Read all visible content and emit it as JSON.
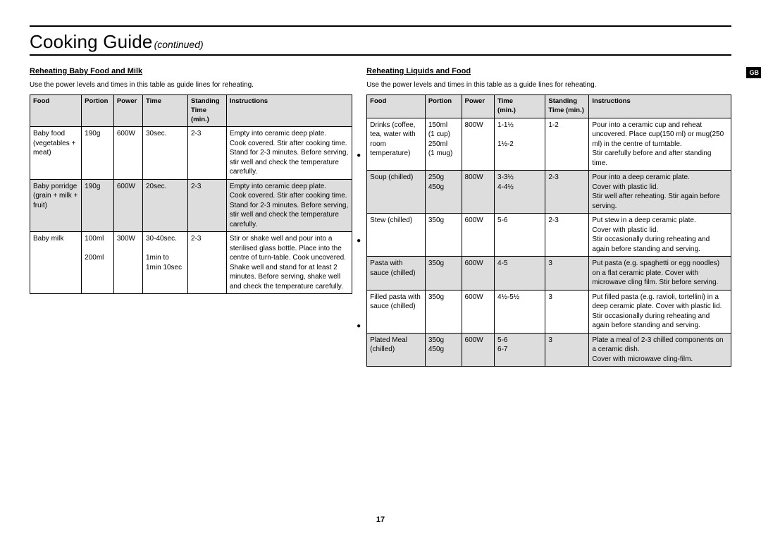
{
  "page": {
    "title_main": "Cooking Guide",
    "title_sub": "(continued)",
    "page_number": "17",
    "lang_badge": "GB"
  },
  "left": {
    "heading": "Reheating Baby Food and Milk",
    "intro": "Use the power levels and times in this table as guide lines for reheating.",
    "columns": [
      "Food",
      "Portion",
      "Power",
      "Time",
      "Standing\nTime\n(min.)",
      "Instructions"
    ],
    "rows": [
      {
        "alt": false,
        "food": "Baby food (vegetables + meat)",
        "portion": "190g",
        "power": "600W",
        "time": "30sec.",
        "stand": "2-3",
        "instr": "Empty into ceramic deep plate.\nCook covered. Stir after cooking time.\nStand for 2-3 minutes. Before serving, stir well and check the temperature carefully."
      },
      {
        "alt": true,
        "food": "Baby porridge (grain + milk + fruit)",
        "portion": "190g",
        "power": "600W",
        "time": "20sec.",
        "stand": "2-3",
        "instr": "Empty into ceramic deep plate.\nCook covered. Stir after cooking time.\nStand for 2-3 minutes. Before serving, stir well and check the temperature carefully."
      },
      {
        "alt": false,
        "food": "Baby milk",
        "portion": "100ml\n\n200ml",
        "power": "300W",
        "time": "30-40sec.\n\n1min to\n1min 10sec",
        "stand": "2-3",
        "instr": "Stir or shake well and pour into a sterilised glass bottle. Place into the centre of turn-table. Cook uncovered. Shake well and stand for at least 2 minutes. Before serving, shake well and check the temperature carefully."
      }
    ]
  },
  "right": {
    "heading": "Reheating Liquids and Food",
    "intro": "Use the power levels and times in this table as a guide lines for reheating.",
    "columns": [
      "Food",
      "Portion",
      "Power",
      "Time\n(min.)",
      "Standing\nTime (min.)",
      "Instructions"
    ],
    "rows": [
      {
        "alt": false,
        "food": "Drinks (coffee, tea, water with room temperature)",
        "portion": "150ml\n(1 cup)\n250ml\n(1 mug)",
        "power": "800W",
        "time": "1-1½\n\n1½-2",
        "stand": "1-2",
        "instr": "Pour into a ceramic cup and  reheat uncovered. Place cup(150 ml) or mug(250 ml) in the centre of turntable.\nStir carefully before and after standing time."
      },
      {
        "alt": true,
        "food": "Soup (chilled)",
        "portion": "250g\n450g",
        "power": "800W",
        "time": "3-3½\n4-4½",
        "stand": "2-3",
        "instr": "Pour into a deep ceramic plate.\nCover with plastic lid.\nStir well after reheating. Stir again before serving."
      },
      {
        "alt": false,
        "food": "Stew (chilled)",
        "portion": "350g",
        "power": "600W",
        "time": "5-6",
        "stand": "2-3",
        "instr": "Put stew in a deep ceramic plate.\nCover with plastic lid.\nStir occasionally during reheating and again before standing and serving."
      },
      {
        "alt": true,
        "food": "Pasta with sauce (chilled)",
        "portion": "350g",
        "power": "600W",
        "time": "4-5",
        "stand": "3",
        "instr": "Put pasta (e.g. spaghetti or egg noodles)  on a flat ceramic plate. Cover with microwave cling film. Stir before serving."
      },
      {
        "alt": false,
        "food": "Filled pasta with sauce (chilled)",
        "portion": "350g",
        "power": "600W",
        "time": "4½-5½",
        "stand": "3",
        "instr": "Put filled pasta (e.g. ravioli, tortellini) in a deep ceramic plate. Cover with plastic lid. Stir occasionally during reheating and again before standing and serving."
      },
      {
        "alt": true,
        "food": "Plated Meal (chilled)",
        "portion": "350g\n450g",
        "power": "600W",
        "time": "5-6\n6-7",
        "stand": "3",
        "instr": "Plate a meal of  2-3 chilled components on a ceramic dish.\nCover with microwave cling-film."
      }
    ]
  }
}
